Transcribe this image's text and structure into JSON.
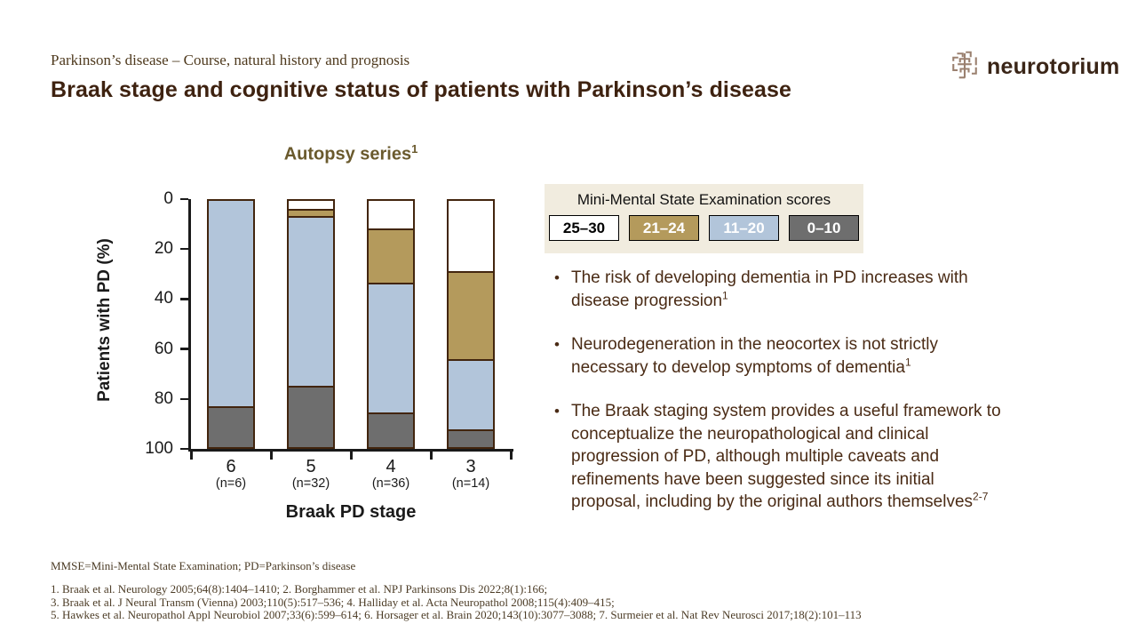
{
  "header": {
    "kicker": "Parkinson’s disease – Course, natural history and prognosis",
    "title": "Braak stage and cognitive status of patients with Parkinson’s disease",
    "logo_text": "neurotorium",
    "title_color": "#3e2210",
    "logo_color": "#3a2517"
  },
  "legend": {
    "title": "Mini-Mental State Examination scores",
    "panel_bg": "#f1ecdf",
    "items": [
      {
        "label": "25–30",
        "bg": "#ffffff",
        "text_color": "#000000"
      },
      {
        "label": "21–24",
        "bg": "#b49a5c",
        "text_color": "#ffffff"
      },
      {
        "label": "11–20",
        "bg": "#b2c5da",
        "text_color": "#ffffff"
      },
      {
        "label": "0–10",
        "bg": "#6e6e6e",
        "text_color": "#ffffff"
      }
    ]
  },
  "chart_data": {
    "type": "bar",
    "stacked": true,
    "y_inverted": true,
    "title": "Autopsy series",
    "title_sup": "1",
    "xlabel": "Braak PD stage",
    "ylabel": "Patients with PD (%)",
    "ylim": [
      0,
      100
    ],
    "y_ticks": [
      0,
      20,
      40,
      60,
      80,
      100
    ],
    "categories": [
      "6",
      "5",
      "4",
      "3"
    ],
    "category_n": [
      "(n=6)",
      "(n=32)",
      "(n=36)",
      "(n=14)"
    ],
    "series": [
      {
        "name": "25–30",
        "color": "#ffffff",
        "values": [
          0,
          3.1,
          11.1,
          28.6
        ]
      },
      {
        "name": "21–24",
        "color": "#b49a5c",
        "values": [
          0,
          3.1,
          22.2,
          35.7
        ]
      },
      {
        "name": "11–20",
        "color": "#b2c5da",
        "values": [
          83.3,
          68.8,
          52.8,
          28.6
        ]
      },
      {
        "name": "0–10",
        "color": "#6e6e6e",
        "values": [
          16.7,
          25.0,
          13.9,
          7.1
        ]
      }
    ],
    "bar_border_color": "#42250e",
    "grid": false,
    "legend_position": "top-right"
  },
  "bullets": [
    {
      "text": "The risk of developing dementia in PD increases with disease progression",
      "sup": "1"
    },
    {
      "text": "Neurodegeneration in the neocortex is not strictly necessary to develop symptoms of dementia",
      "sup": "1"
    },
    {
      "text": "The Braak staging system provides a useful framework to conceptualize the neuropathological and clinical progression of PD, although multiple caveats and refinements have been suggested since its initial proposal, including by the original authors themselves",
      "sup": "2-7"
    }
  ],
  "footer": {
    "abbreviations": "MMSE=Mini-Mental State Examination; PD=Parkinson’s disease",
    "references": [
      "1. Braak et al. Neurology 2005;64(8):1404–1410; 2. Borghammer et al. NPJ Parkinsons Dis 2022;8(1):166;",
      "3. Braak et al. J Neural Transm (Vienna) 2003;110(5):517–536; 4. Halliday et al. Acta Neuropathol 2008;115(4):409–415;",
      "5. Hawkes et al. Neuropathol Appl Neurobiol 2007;33(6):599–614; 6. Horsager et al. Brain 2020;143(10):3077–3088; 7. Surmeier et al. Nat Rev Neurosci 2017;18(2):101–113"
    ]
  }
}
